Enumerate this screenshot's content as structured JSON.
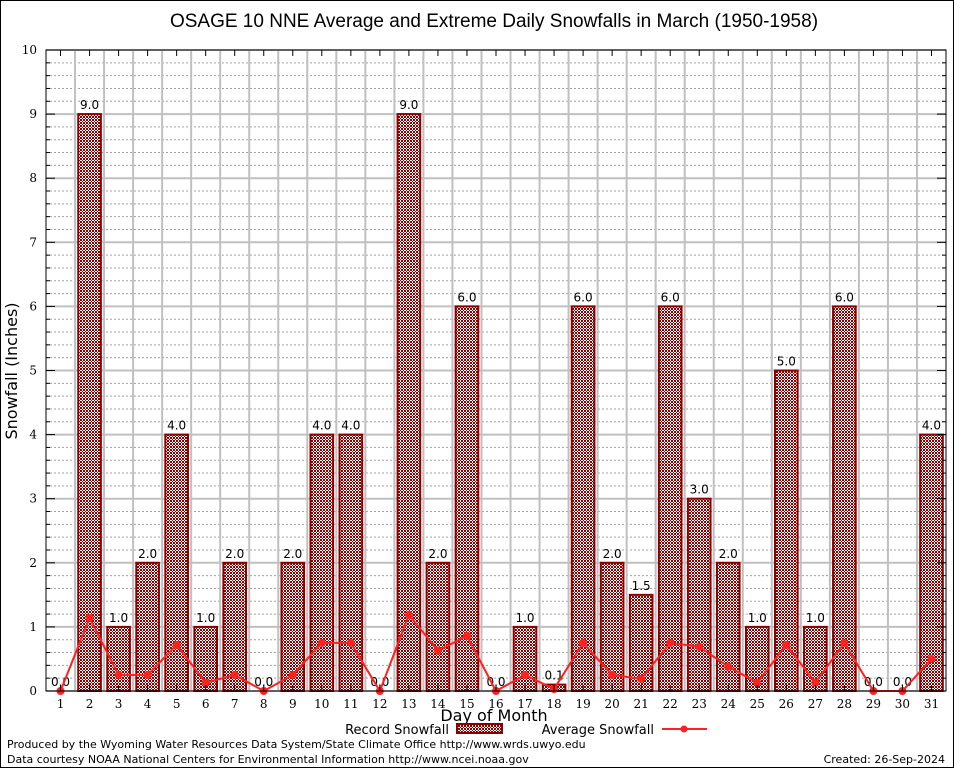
{
  "chart_data": {
    "type": "bar",
    "title": "OSAGE 10 NNE Average and Extreme Daily Snowfalls in March (1950-1958)",
    "xlabel": "Day of Month",
    "ylabel": "Snowfall (Inches)",
    "ylim": [
      0,
      10
    ],
    "yticks": [
      "0",
      "1",
      "2",
      "3",
      "4",
      "5",
      "6",
      "7",
      "8",
      "9",
      "10"
    ],
    "grid": true,
    "categories": [
      "1",
      "2",
      "3",
      "4",
      "5",
      "6",
      "7",
      "8",
      "9",
      "10",
      "11",
      "12",
      "13",
      "14",
      "15",
      "16",
      "17",
      "18",
      "19",
      "20",
      "21",
      "22",
      "23",
      "24",
      "25",
      "26",
      "27",
      "28",
      "29",
      "30",
      "31"
    ],
    "series": [
      {
        "name": "Record Snowfall",
        "kind": "bar",
        "color": "#8b0000",
        "values": [
          0.0,
          9.0,
          1.0,
          2.0,
          4.0,
          1.0,
          2.0,
          0.0,
          2.0,
          4.0,
          4.0,
          0.0,
          9.0,
          2.0,
          6.0,
          0.0,
          1.0,
          0.1,
          6.0,
          2.0,
          1.5,
          6.0,
          3.0,
          2.0,
          1.0,
          5.0,
          1.0,
          6.0,
          0.0,
          0.0,
          4.0
        ],
        "labels": [
          "0.0",
          "9.0",
          "1.0",
          "2.0",
          "4.0",
          "1.0",
          "2.0",
          "0.0",
          "2.0",
          "4.0",
          "4.0",
          "0.0",
          "9.0",
          "2.0",
          "6.0",
          "0.0",
          "1.0",
          "0.1",
          "6.0",
          "2.0",
          "1.5",
          "6.0",
          "3.0",
          "2.0",
          "1.0",
          "5.0",
          "1.0",
          "6.0",
          "0.0",
          "0.0",
          "4.0"
        ]
      },
      {
        "name": "Average Snowfall",
        "kind": "line",
        "color": "#ff2020",
        "values": [
          0.0,
          1.14,
          0.25,
          0.25,
          0.72,
          0.13,
          0.25,
          0.0,
          0.25,
          0.75,
          0.75,
          0.0,
          1.19,
          0.63,
          0.86,
          0.0,
          0.25,
          0.03,
          0.75,
          0.25,
          0.19,
          0.75,
          0.69,
          0.38,
          0.13,
          0.72,
          0.13,
          0.75,
          0.0,
          0.0,
          0.5
        ]
      }
    ],
    "legend": {
      "placement": "bottom-center",
      "entries": [
        "Record Snowfall",
        "Average Snowfall"
      ]
    }
  },
  "footer": {
    "line1": "Produced by the Wyoming Water Resources Data System/State Climate Office http://www.wrds.uwyo.edu",
    "line2": "Data courtesy NOAA National Centers for Environmental Information http://www.ncei.noaa.gov",
    "created": "Created:  26-Sep-2024"
  }
}
